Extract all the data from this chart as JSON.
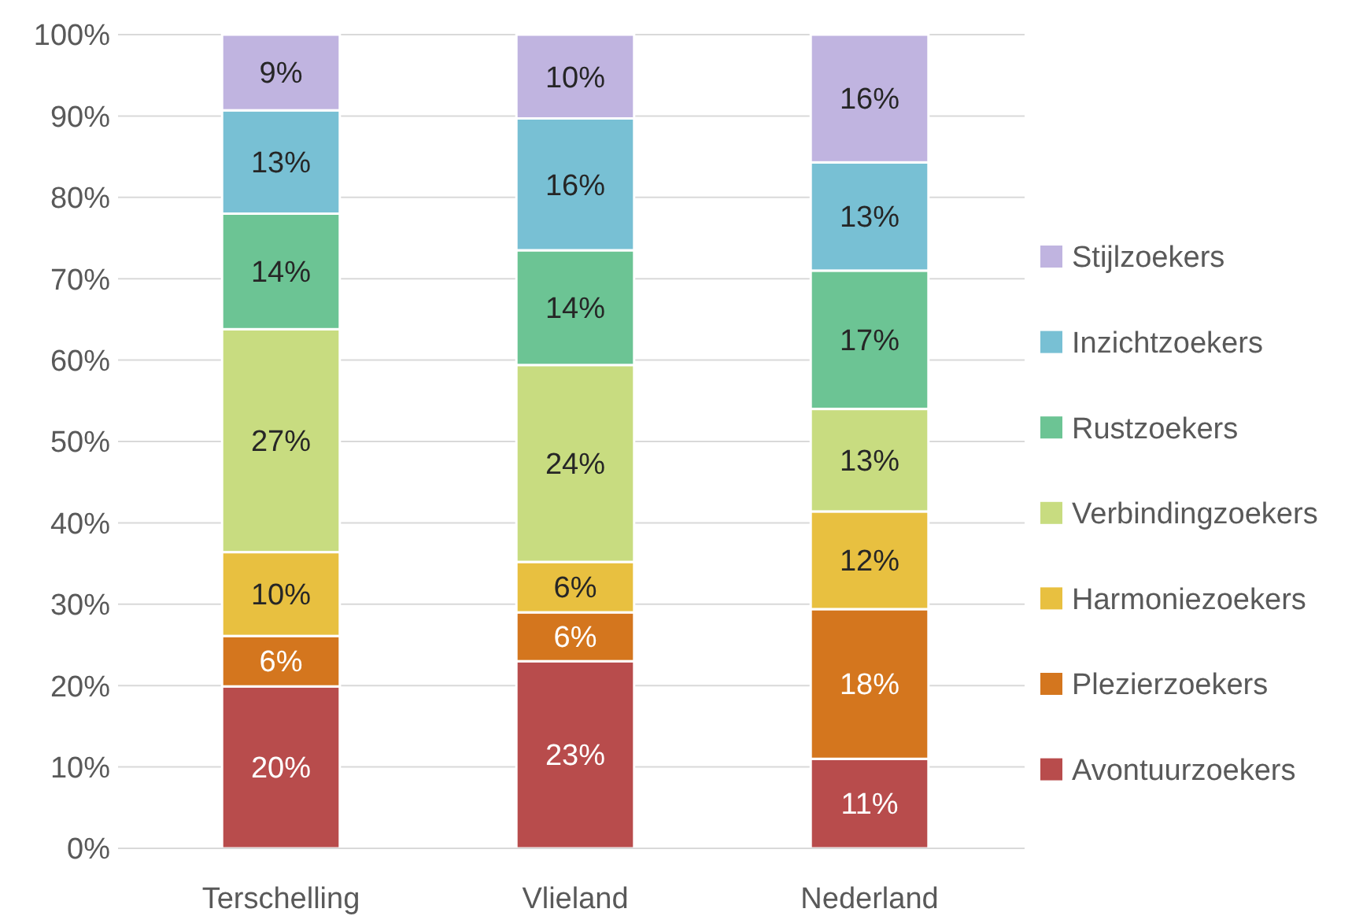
{
  "chart_data": {
    "type": "bar",
    "stacked": true,
    "categories": [
      "Terschelling",
      "Vlieland",
      "Nederland"
    ],
    "series": [
      {
        "name": "Avontuurzoekers",
        "color": "#b84c4c",
        "values": [
          19.9,
          23.0,
          11.0
        ],
        "value_labels": [
          "20%",
          "23%",
          "11%"
        ]
      },
      {
        "name": "Plezierzoekers",
        "color": "#d4761e",
        "values": [
          6.2,
          6.0,
          18.4
        ],
        "value_labels": [
          "6%",
          "6%",
          "18%"
        ]
      },
      {
        "name": "Harmoniezoekers",
        "color": "#e8c040",
        "values": [
          10.3,
          6.2,
          12.0
        ],
        "value_labels": [
          "10%",
          "6%",
          "12%"
        ]
      },
      {
        "name": "Verbindingzoekers",
        "color": "#c8dc80",
        "values": [
          27.4,
          24.2,
          12.6
        ],
        "value_labels": [
          "27%",
          "24%",
          "13%"
        ]
      },
      {
        "name": "Rustzoekers",
        "color": "#6cc494",
        "values": [
          14.2,
          14.1,
          17.0
        ],
        "value_labels": [
          "14%",
          "14%",
          "17%"
        ]
      },
      {
        "name": "Inzichtzoekers",
        "color": "#78c0d4",
        "values": [
          12.7,
          16.2,
          13.3
        ],
        "value_labels": [
          "13%",
          "16%",
          "13%"
        ]
      },
      {
        "name": "Stijlzoekers",
        "color": "#c0b4e0",
        "values": [
          9.3,
          10.3,
          15.7
        ],
        "value_labels": [
          "9%",
          "10%",
          "16%"
        ]
      }
    ],
    "ylim": [
      0,
      100
    ],
    "yticks": [
      {
        "value": 0,
        "label": "0%"
      },
      {
        "value": 10,
        "label": "10%"
      },
      {
        "value": 20,
        "label": "20%"
      },
      {
        "value": 30,
        "label": "30%"
      },
      {
        "value": 40,
        "label": "40%"
      },
      {
        "value": 50,
        "label": "50%"
      },
      {
        "value": 60,
        "label": "60%"
      },
      {
        "value": 70,
        "label": "70%"
      },
      {
        "value": 80,
        "label": "80%"
      },
      {
        "value": 90,
        "label": "90%"
      },
      {
        "value": 100,
        "label": "100%"
      }
    ],
    "grid": "y",
    "legend": "right"
  }
}
